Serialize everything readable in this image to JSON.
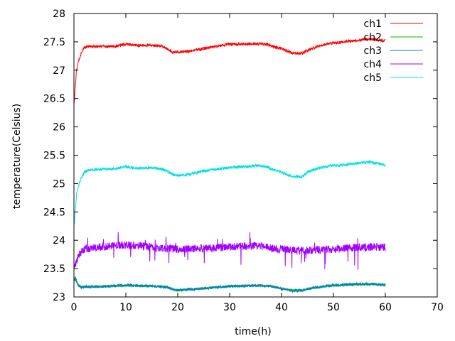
{
  "chart_data": {
    "type": "line",
    "xlabel": "time(h)",
    "ylabel": "temperature(Celsius)",
    "xlim": [
      0,
      70
    ],
    "ylim": [
      23,
      28
    ],
    "x_ticks": [
      0,
      10,
      20,
      30,
      40,
      50,
      60,
      70
    ],
    "y_ticks": [
      23,
      23.5,
      24,
      24.5,
      25,
      25.5,
      26,
      26.5,
      27,
      27.5,
      28
    ],
    "x_tick_labels": [
      "0",
      "10",
      "20",
      "30",
      "40",
      "50",
      "60",
      "70"
    ],
    "y_tick_labels": [
      "23",
      "23.5",
      "24",
      "24.5",
      "25",
      "25.5",
      "26",
      "26.5",
      "27",
      "27.5",
      "28"
    ],
    "grid": false,
    "legend_position": "top-right",
    "series": [
      {
        "name": "ch1",
        "color": "#ff0000",
        "x": [
          0,
          0.5,
          1,
          1.5,
          2,
          3,
          5,
          8,
          10,
          12,
          15,
          17,
          18,
          19,
          20,
          22,
          25,
          28,
          30,
          33,
          35,
          37,
          38,
          40,
          42,
          44,
          45,
          47,
          50,
          52,
          55,
          57,
          58,
          60
        ],
        "y": [
          26.4,
          27.0,
          27.2,
          27.32,
          27.4,
          27.42,
          27.42,
          27.42,
          27.46,
          27.44,
          27.44,
          27.42,
          27.38,
          27.32,
          27.32,
          27.33,
          27.38,
          27.43,
          27.46,
          27.46,
          27.47,
          27.46,
          27.43,
          27.38,
          27.3,
          27.3,
          27.35,
          27.42,
          27.48,
          27.5,
          27.53,
          27.55,
          27.54,
          27.52
        ],
        "noise": 0.025
      },
      {
        "name": "ch2",
        "color": "#00c000",
        "x": [
          0,
          0.3,
          0.8,
          1.5,
          2,
          5,
          10,
          15,
          18,
          19,
          20,
          25,
          30,
          35,
          38,
          40,
          42,
          44,
          46,
          50,
          55,
          58,
          60
        ],
        "y": [
          23.3,
          23.35,
          23.22,
          23.18,
          23.18,
          23.18,
          23.2,
          23.19,
          23.18,
          23.14,
          23.12,
          23.15,
          23.19,
          23.2,
          23.19,
          23.15,
          23.12,
          23.12,
          23.16,
          23.2,
          23.22,
          23.22,
          23.22
        ],
        "noise": 0.015
      },
      {
        "name": "ch3",
        "color": "#0080c0",
        "x": [
          0,
          0.3,
          0.8,
          1.5,
          2,
          5,
          10,
          15,
          18,
          19,
          20,
          25,
          30,
          35,
          38,
          40,
          42,
          44,
          46,
          50,
          55,
          58,
          60
        ],
        "y": [
          23.28,
          23.32,
          23.2,
          23.16,
          23.18,
          23.18,
          23.21,
          23.19,
          23.17,
          23.13,
          23.12,
          23.15,
          23.19,
          23.2,
          23.19,
          23.14,
          23.11,
          23.11,
          23.16,
          23.21,
          23.23,
          23.23,
          23.21
        ],
        "noise": 0.022
      },
      {
        "name": "ch4",
        "color": "#a000ff",
        "x": [
          0,
          0.5,
          1,
          2,
          5,
          10,
          15,
          20,
          25,
          30,
          35,
          40,
          45,
          50,
          55,
          60
        ],
        "y": [
          23.55,
          23.62,
          23.75,
          23.85,
          23.88,
          23.92,
          23.88,
          23.84,
          23.86,
          23.88,
          23.9,
          23.84,
          23.82,
          23.84,
          23.88,
          23.88
        ],
        "noise": 0.07
      },
      {
        "name": "ch5",
        "color": "#00e0e0",
        "x": [
          0,
          0.5,
          1,
          1.5,
          2,
          3,
          5,
          8,
          10,
          12,
          15,
          17,
          18,
          19,
          20,
          22,
          25,
          28,
          30,
          33,
          35,
          37,
          38,
          40,
          42,
          44,
          45,
          47,
          50,
          52,
          55,
          57,
          58,
          60
        ],
        "y": [
          24.25,
          24.8,
          25.0,
          25.12,
          25.2,
          25.24,
          25.25,
          25.26,
          25.3,
          25.27,
          25.28,
          25.25,
          25.22,
          25.16,
          25.14,
          25.16,
          25.22,
          25.26,
          25.28,
          25.3,
          25.32,
          25.3,
          25.26,
          25.2,
          25.12,
          25.12,
          25.2,
          25.27,
          25.32,
          25.33,
          25.36,
          25.38,
          25.36,
          25.33
        ],
        "noise": 0.025
      }
    ]
  }
}
